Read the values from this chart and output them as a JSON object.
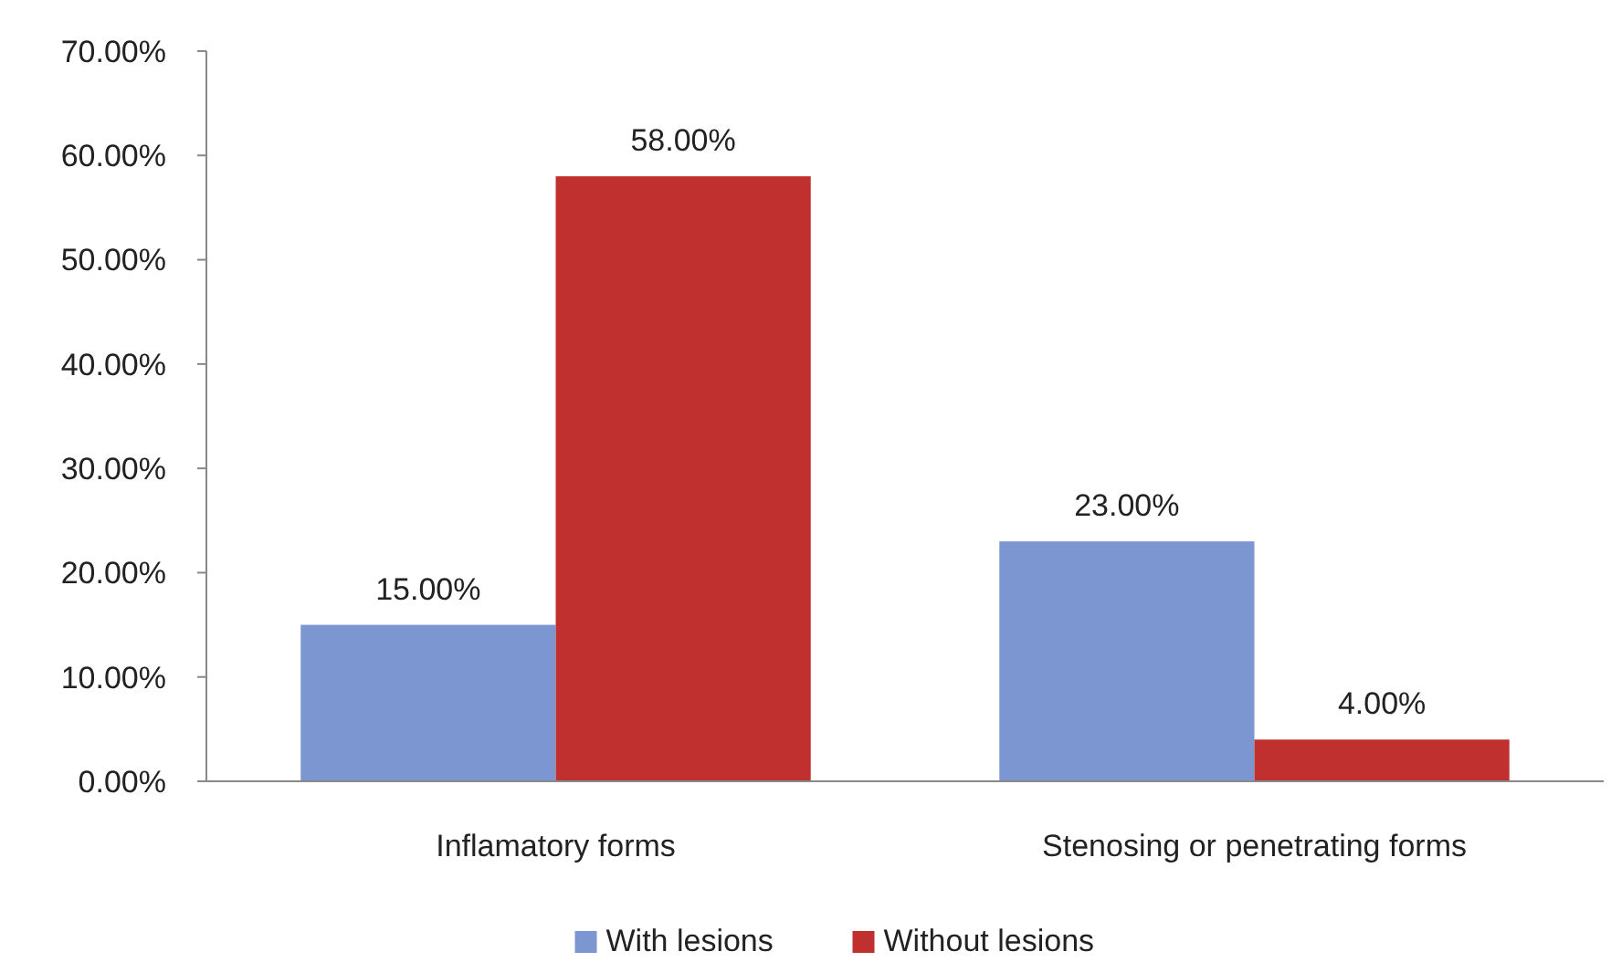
{
  "chart_data": {
    "type": "bar",
    "categories": [
      "Inflamatory forms",
      "Stenosing or penetrating forms"
    ],
    "series": [
      {
        "name": "With lesions",
        "color": "#7b96d0",
        "values": [
          15,
          23
        ],
        "value_labels": [
          "15.00%",
          "23.00%"
        ]
      },
      {
        "name": "Without lesions",
        "color": "#c0302f",
        "values": [
          58,
          4
        ],
        "value_labels": [
          "58.00%",
          "4.00%"
        ]
      }
    ],
    "ylim": [
      0,
      70
    ],
    "yticks": [
      {
        "value": 0,
        "label": "0.00%"
      },
      {
        "value": 10,
        "label": "10.00%"
      },
      {
        "value": 20,
        "label": "20.00%"
      },
      {
        "value": 30,
        "label": "30.00%"
      },
      {
        "value": 40,
        "label": "40.00%"
      },
      {
        "value": 50,
        "label": "50.00%"
      },
      {
        "value": 60,
        "label": "60.00%"
      },
      {
        "value": 70,
        "label": "70.00%"
      }
    ],
    "grid": false,
    "legend": "bottom"
  }
}
